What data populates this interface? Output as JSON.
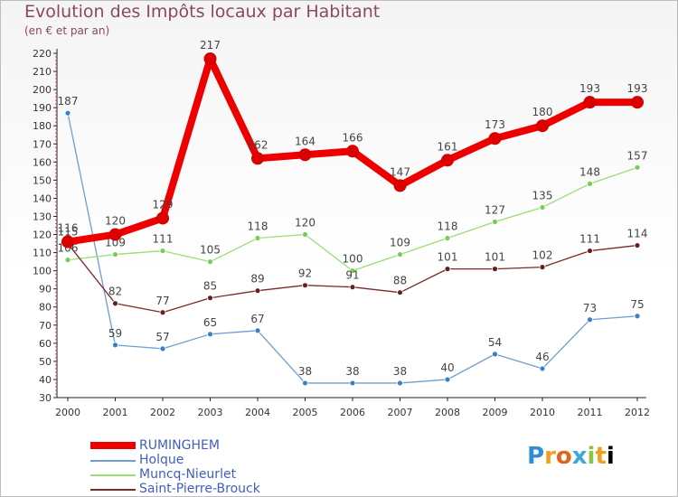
{
  "chart_data": {
    "type": "line",
    "title": "Evolution des Impôts locaux par Habitant",
    "subtitle": "(en € et par an)",
    "xlabel": "",
    "ylabel": "",
    "categories": [
      "2000",
      "2001",
      "2002",
      "2003",
      "2004",
      "2005",
      "2006",
      "2007",
      "2008",
      "2009",
      "2010",
      "2011",
      "2012"
    ],
    "ylim": [
      30,
      220
    ],
    "yticks": [
      30,
      40,
      50,
      60,
      70,
      80,
      90,
      100,
      110,
      120,
      130,
      140,
      150,
      160,
      170,
      180,
      190,
      200,
      210,
      220
    ],
    "grid": false,
    "legend_position": "bottom-left",
    "series": [
      {
        "name": "RUMINGHEM",
        "color": "#ee0000",
        "marker": "#dd0000",
        "values": [
          116,
          120,
          129,
          217,
          162,
          164,
          166,
          147,
          161,
          173,
          180,
          193,
          193
        ]
      },
      {
        "name": "Holque",
        "color": "#6b9fd0",
        "marker": "#3b7fc4",
        "values": [
          187,
          59,
          57,
          65,
          67,
          38,
          38,
          38,
          40,
          54,
          46,
          73,
          75
        ]
      },
      {
        "name": "Muncq-Nieurlet",
        "color": "#99dd77",
        "marker": "#77cc55",
        "values": [
          106,
          109,
          111,
          105,
          118,
          120,
          100,
          109,
          118,
          127,
          135,
          148,
          157
        ]
      },
      {
        "name": "Saint-Pierre-Brouck",
        "color": "#7a2a2a",
        "marker": "#6a1f1f",
        "values": [
          115,
          82,
          77,
          85,
          89,
          92,
          91,
          88,
          101,
          101,
          102,
          111,
          114
        ]
      }
    ]
  },
  "brand": {
    "letters": [
      "P",
      "r",
      "o",
      "x",
      "i",
      "t",
      "i"
    ]
  }
}
